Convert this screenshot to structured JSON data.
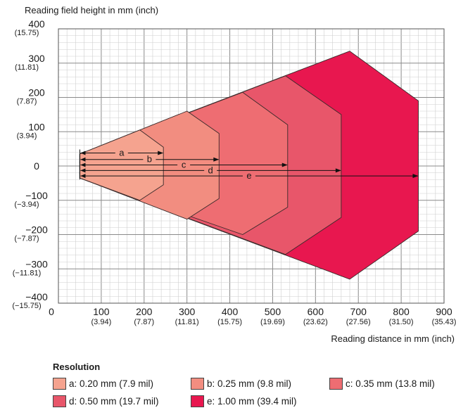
{
  "chart_data": {
    "type": "area",
    "ylabel": "Reading field height in mm (inch)",
    "xlabel": "Reading distance in mm (inch)",
    "xlim": [
      0,
      900
    ],
    "ylim": [
      -400,
      400
    ],
    "x_ticks": [
      {
        "value": 0,
        "mm": "0",
        "inch": ""
      },
      {
        "value": 100,
        "mm": "100",
        "inch": "(3.94)"
      },
      {
        "value": 200,
        "mm": "200",
        "inch": "(7.87)"
      },
      {
        "value": 300,
        "mm": "300",
        "inch": "(11.81)"
      },
      {
        "value": 400,
        "mm": "400",
        "inch": "(15.75)"
      },
      {
        "value": 500,
        "mm": "500",
        "inch": "(19.69)"
      },
      {
        "value": 600,
        "mm": "600",
        "inch": "(23.62)"
      },
      {
        "value": 700,
        "mm": "700",
        "inch": "(27.56)"
      },
      {
        "value": 800,
        "mm": "800",
        "inch": "(31.50)"
      },
      {
        "value": 900,
        "mm": "900",
        "inch": "(35.43)"
      }
    ],
    "y_ticks": [
      {
        "value": 400,
        "mm": "400",
        "inch": "(15.75)"
      },
      {
        "value": 300,
        "mm": "300",
        "inch": "(11.81)"
      },
      {
        "value": 200,
        "mm": "200",
        "inch": "(7.87)"
      },
      {
        "value": 100,
        "mm": "100",
        "inch": "(3.94)"
      },
      {
        "value": 0,
        "mm": "0",
        "inch": ""
      },
      {
        "value": -100,
        "mm": "−100",
        "inch": "(−3.94)"
      },
      {
        "value": -200,
        "mm": "−200",
        "inch": "(−7.87)"
      },
      {
        "value": -300,
        "mm": "−300",
        "inch": "(−11.81)"
      },
      {
        "value": -400,
        "mm": "−400",
        "inch": "(−15.75)"
      }
    ],
    "grid": true,
    "series": [
      {
        "name": "e",
        "color": "#e8174f",
        "points": [
          [
            50,
            35
          ],
          [
            50,
            -35
          ],
          [
            680,
            -330
          ],
          [
            840,
            -190
          ],
          [
            840,
            190
          ],
          [
            680,
            335
          ]
        ]
      },
      {
        "name": "d",
        "color": "#e8566a",
        "points": [
          [
            50,
            35
          ],
          [
            50,
            -35
          ],
          [
            530,
            -258
          ],
          [
            660,
            -150
          ],
          [
            660,
            150
          ],
          [
            530,
            263
          ]
        ]
      },
      {
        "name": "c",
        "color": "#ee6d72",
        "points": [
          [
            50,
            35
          ],
          [
            50,
            -35
          ],
          [
            430,
            -200
          ],
          [
            535,
            -120
          ],
          [
            535,
            120
          ],
          [
            430,
            215
          ]
        ]
      },
      {
        "name": "b",
        "color": "#f28d80",
        "points": [
          [
            50,
            35
          ],
          [
            50,
            -35
          ],
          [
            300,
            -155
          ],
          [
            375,
            -95
          ],
          [
            375,
            95
          ],
          [
            300,
            160
          ]
        ]
      },
      {
        "name": "a",
        "color": "#f5a38f",
        "points": [
          [
            50,
            35
          ],
          [
            50,
            -35
          ],
          [
            190,
            -100
          ],
          [
            245,
            -55
          ],
          [
            245,
            55
          ],
          [
            190,
            105
          ]
        ]
      }
    ],
    "annotations": [
      {
        "label": "a",
        "x_start": 50,
        "x_end": 245,
        "y": 38
      },
      {
        "label": "b",
        "x_start": 50,
        "x_end": 375,
        "y": 19
      },
      {
        "label": "c",
        "x_start": 50,
        "x_end": 535,
        "y": 3
      },
      {
        "label": "d",
        "x_start": 50,
        "x_end": 660,
        "y": -13
      },
      {
        "label": "e",
        "x_start": 50,
        "x_end": 840,
        "y": -29
      }
    ],
    "legend": {
      "title": "Resolution",
      "position": "bottom",
      "items": [
        {
          "label": "a: 0.20 mm (7.9 mil)",
          "color": "#f5a38f"
        },
        {
          "label": "b: 0.25 mm (9.8 mil)",
          "color": "#f28d80"
        },
        {
          "label": "c: 0.35 mm (13.8 mil)",
          "color": "#ee6d72"
        },
        {
          "label": "d: 0.50 mm (19.7 mil)",
          "color": "#e8566a"
        },
        {
          "label": "e: 1.00 mm (39.4 mil)",
          "color": "#e8174f"
        }
      ]
    }
  }
}
